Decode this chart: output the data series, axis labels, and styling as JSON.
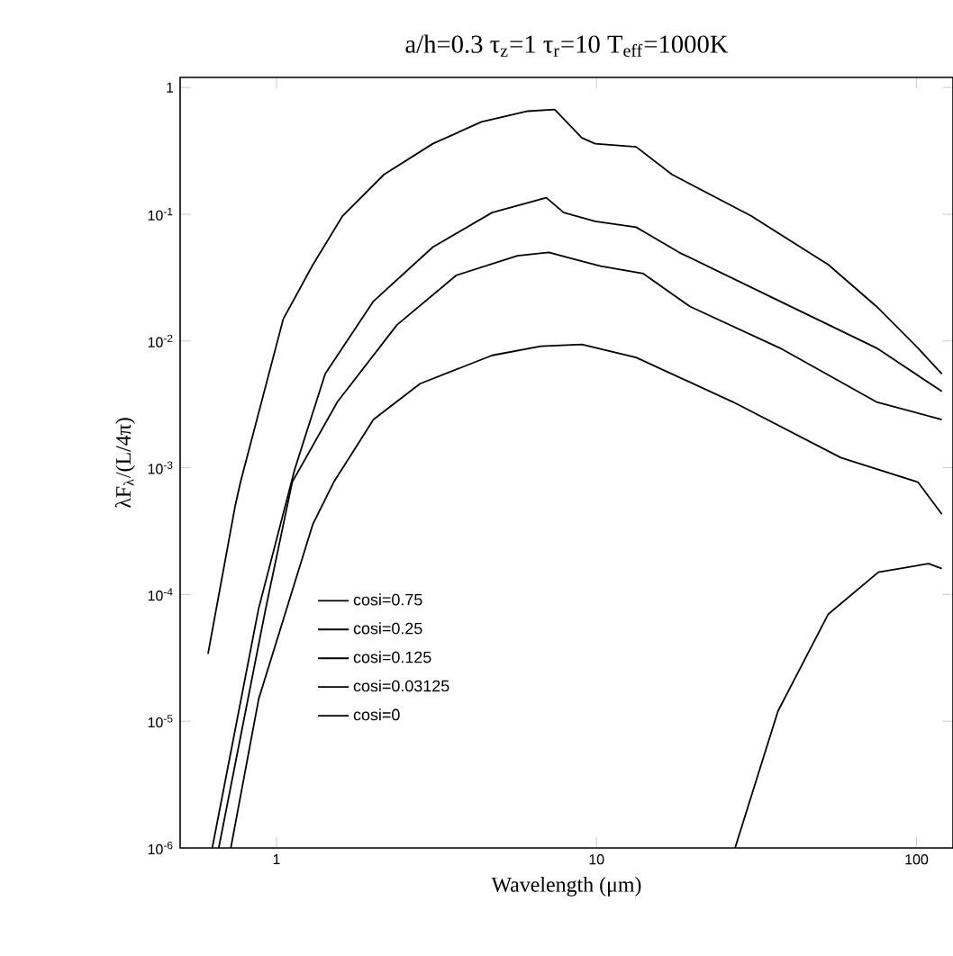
{
  "chart_data": {
    "type": "line",
    "title": "a/h=0.3 τ$_{z}$=1 τ$_{r}$=10 T$_{eff}$=1000K",
    "xlabel": "Wavelength (μm)",
    "ylabel": "λF$_{λ}$/(L/4π)",
    "log": "xy",
    "xlim": [
      0.5,
      130
    ],
    "ylim": [
      1e-06,
      1.2
    ],
    "xticks": [
      1,
      10,
      100
    ],
    "yticks": [
      {
        "value": 1e-06,
        "label": "10$^{-6}$"
      },
      {
        "value": 1e-05,
        "label": "10$^{-5}$"
      },
      {
        "value": 0.0001,
        "label": "10$^{-4}$"
      },
      {
        "value": 0.001,
        "label": "10$^{-3}$"
      },
      {
        "value": 0.01,
        "label": "10$^{-2}$"
      },
      {
        "value": 0.1,
        "label": "10$^{-1}$"
      },
      1
    ],
    "legend": "left",
    "grid": false,
    "marker": "none",
    "line_style": "solid",
    "series": [
      {
        "name": "cosi=0.75",
        "color": "#000000",
        "x": [
          0.611,
          0.743,
          0.772,
          1.05,
          1.3,
          1.61,
          2.17,
          3.08,
          4.37,
          6.1,
          7.4,
          9.0,
          9.9,
          13.3,
          17.2,
          30.4,
          53,
          75,
          101,
          120
        ],
        "values": [
          3.4e-05,
          0.0005,
          0.00077,
          0.0149,
          0.04,
          0.097,
          0.206,
          0.36,
          0.535,
          0.65,
          0.67,
          0.4,
          0.36,
          0.34,
          0.206,
          0.097,
          0.04,
          0.0187,
          0.0088,
          0.0055
        ]
      },
      {
        "name": "cosi=0.25",
        "color": "#000000",
        "x": [
          0.63,
          0.879,
          1.14,
          1.42,
          2.01,
          3.08,
          4.72,
          6.97,
          7.9,
          9.9,
          13.3,
          18.1,
          37.4,
          75,
          120
        ],
        "values": [
          1e-06,
          7.7e-05,
          0.00097,
          0.0055,
          0.0206,
          0.055,
          0.103,
          0.135,
          0.103,
          0.088,
          0.079,
          0.05,
          0.0206,
          0.0088,
          0.004
        ]
      },
      {
        "name": "cosi=0.125",
        "color": "#000000",
        "x": [
          0.66,
          0.925,
          1.12,
          1.55,
          2.38,
          3.65,
          5.66,
          7.1,
          8.3,
          10.3,
          14.0,
          19.6,
          37.4,
          75,
          120
        ],
        "values": [
          1e-06,
          7.7e-05,
          0.00077,
          0.0033,
          0.0134,
          0.033,
          0.047,
          0.05,
          0.045,
          0.039,
          0.034,
          0.0187,
          0.0088,
          0.0033,
          0.0024
        ]
      },
      {
        "name": "cosi=0.03125",
        "color": "#000000",
        "x": [
          0.72,
          0.88,
          1.3,
          1.51,
          2.01,
          2.81,
          4.72,
          6.7,
          9.0,
          13.3,
          26.7,
          58,
          101,
          120
        ],
        "values": [
          1e-06,
          1.5e-05,
          0.00036,
          0.00077,
          0.0024,
          0.0046,
          0.0077,
          0.0091,
          0.0094,
          0.0074,
          0.0033,
          0.0012,
          0.00077,
          0.00043
        ]
      },
      {
        "name": "cosi=0",
        "color": "#000000",
        "x": [
          27.1,
          36.9,
          53,
          76,
          109,
          120
        ],
        "values": [
          1e-06,
          1.2e-05,
          7e-05,
          0.00015,
          0.000175,
          0.00016
        ]
      }
    ]
  }
}
